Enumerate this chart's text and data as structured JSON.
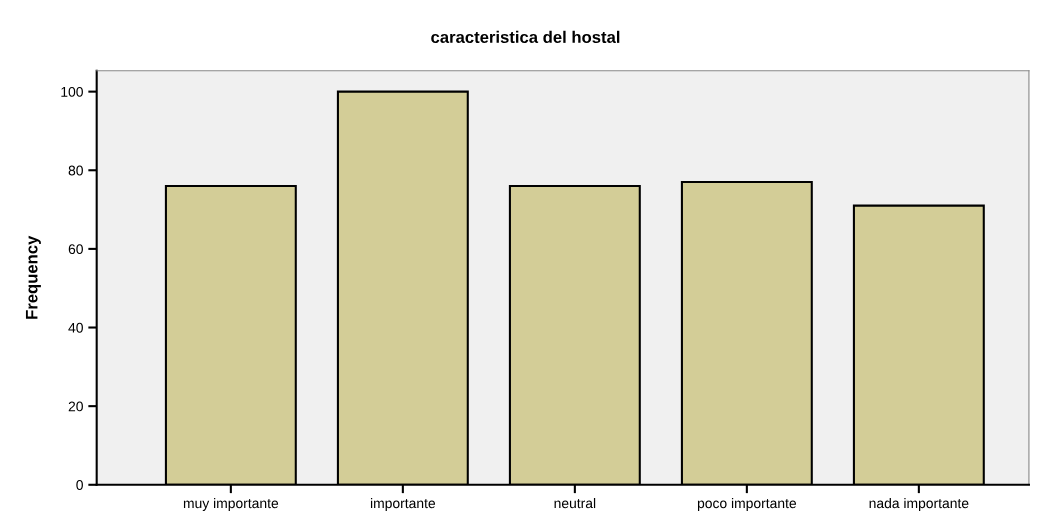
{
  "chart_data": {
    "type": "bar",
    "title": "caracteristica del hostal",
    "ylabel": "Frequency",
    "categories": [
      "muy importante",
      "importante",
      "neutral",
      "poco importante",
      "nada importante"
    ],
    "values": [
      76,
      100,
      76,
      77,
      71
    ],
    "color": "#d3cd97",
    "ylim": [
      0,
      105.3
    ],
    "yticks": [
      0,
      20,
      40,
      60,
      80,
      100
    ],
    "grid": false,
    "legend": false
  }
}
